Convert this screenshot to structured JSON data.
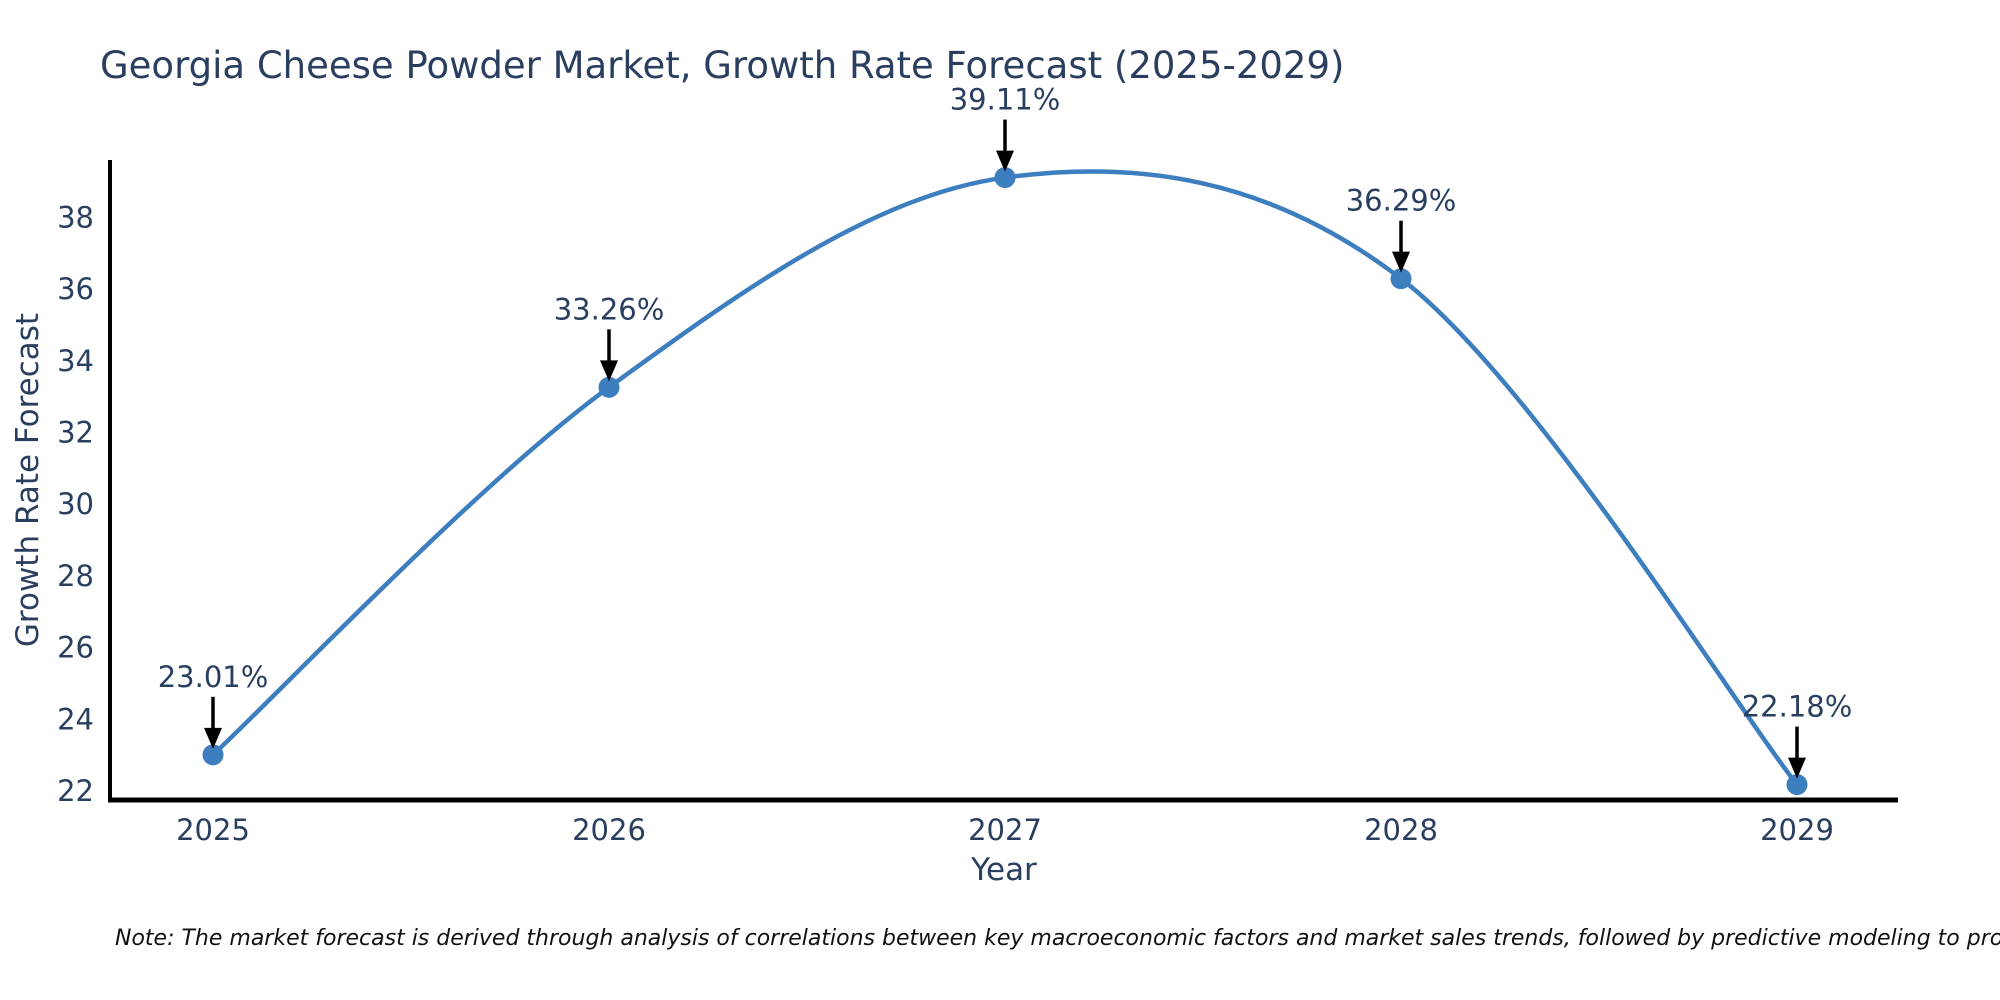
{
  "title": "Georgia Cheese Powder Market, Growth Rate Forecast (2025-2029)",
  "note": "Note: The market forecast is derived through analysis of correlations between key macroeconomic factors and market sales trends, followed by predictive modeling to project future sales.",
  "chart_data": {
    "type": "line",
    "line_shape": "spline",
    "title": "Georgia Cheese Powder Market, Growth Rate Forecast (2025-2029)",
    "categories": [
      "2025",
      "2026",
      "2027",
      "2028",
      "2029"
    ],
    "series": [
      {
        "name": "Growth Rate Forecast",
        "values": [
          23.01,
          33.26,
          39.11,
          36.29,
          22.18
        ],
        "point_labels": [
          "23.01%",
          "33.26%",
          "39.11%",
          "36.29%",
          "22.18%"
        ]
      }
    ],
    "xlabel": "Year",
    "ylabel": "Growth Rate Forecast",
    "yticks": [
      22,
      24,
      26,
      28,
      30,
      32,
      34,
      36,
      38
    ],
    "ylim": [
      21.75,
      39.6
    ],
    "grid": false,
    "legend_position": "none",
    "colors": {
      "line": "#3d7ebf",
      "marker": "#3d7ebf",
      "axis_line": "#000000",
      "text": "#2a3f5f",
      "annotation_arrow": "#000000",
      "background": "#ffffff"
    }
  }
}
